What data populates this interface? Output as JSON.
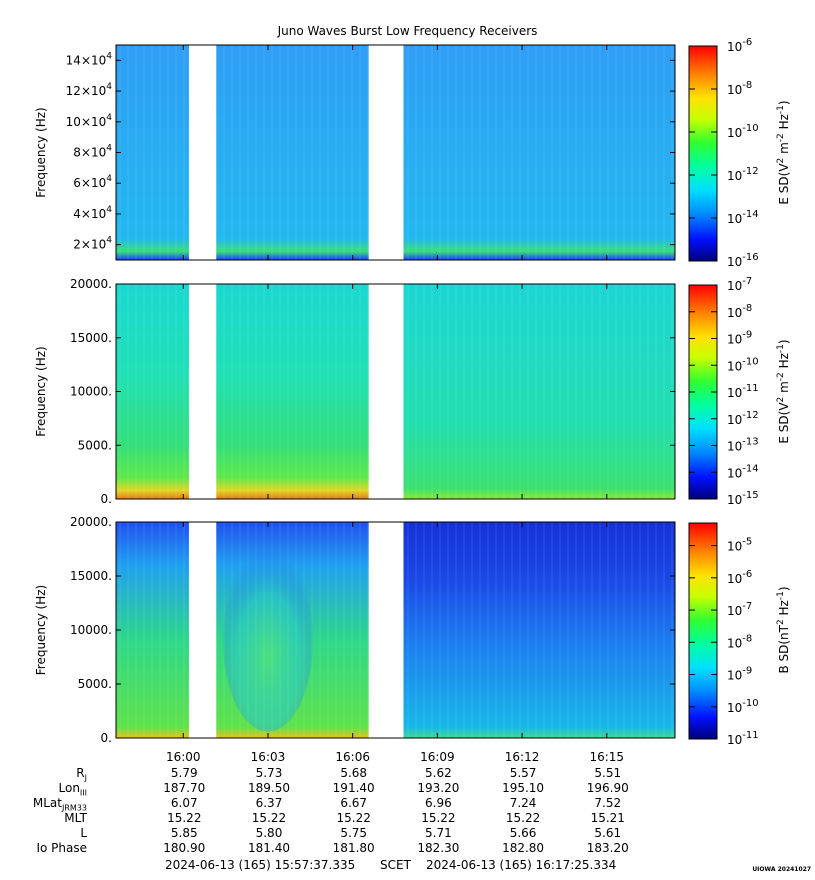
{
  "title": "Juno Waves Burst Low Frequency Receivers",
  "colors": {
    "gap": "#ffffff",
    "frame": "#000000"
  },
  "chart_data": [
    {
      "type": "heatmap",
      "panel": "top",
      "ylabel": "Frequency (Hz)",
      "ylim": [
        10000,
        150000
      ],
      "y_ticks": [
        20000,
        40000,
        60000,
        80000,
        100000,
        120000,
        140000
      ],
      "y_tick_labels": [
        {
          "mant": "2",
          "exp": "4"
        },
        {
          "mant": "4",
          "exp": "4"
        },
        {
          "mant": "6",
          "exp": "4"
        },
        {
          "mant": "8",
          "exp": "4"
        },
        {
          "mant": "10",
          "exp": "4"
        },
        {
          "mant": "12",
          "exp": "4"
        },
        {
          "mant": "14",
          "exp": "4"
        }
      ],
      "colorbar_label": "E SD(V^2 m^-2 Hz^-1)",
      "colorbar_range_exp": [
        -16,
        -6
      ],
      "colorbar_tick_exps": [
        "-6",
        "-8",
        "-10",
        "-12",
        "-14",
        "-16"
      ],
      "data_gaps": [
        [
          "16:00:12",
          "16:01:10"
        ],
        [
          "16:06:34",
          "16:07:48"
        ]
      ]
    },
    {
      "type": "heatmap",
      "panel": "middle",
      "ylabel": "Frequency (Hz)",
      "ylim": [
        0,
        20000
      ],
      "y_ticks": [
        0,
        5000,
        10000,
        15000,
        20000
      ],
      "y_tick_labels": [
        "0.",
        "5000.",
        "10000.",
        "15000.",
        "20000."
      ],
      "colorbar_label": "E SD(V^2 m^-2 Hz^-1)",
      "colorbar_range_exp": [
        -15,
        -7
      ],
      "colorbar_tick_exps": [
        "-7",
        "-8",
        "-9",
        "-10",
        "-11",
        "-12",
        "-13",
        "-14",
        "-15"
      ],
      "data_gaps": [
        [
          "16:00:12",
          "16:01:10"
        ],
        [
          "16:06:34",
          "16:07:48"
        ]
      ]
    },
    {
      "type": "heatmap",
      "panel": "bottom",
      "ylabel": "Frequency (Hz)",
      "ylim": [
        0,
        20000
      ],
      "y_ticks": [
        0,
        5000,
        10000,
        15000,
        20000
      ],
      "y_tick_labels": [
        "0.",
        "5000.",
        "10000.",
        "15000.",
        "20000."
      ],
      "colorbar_label": "B SD(nT^2 Hz^-1)",
      "colorbar_range_exp": [
        -11,
        -4.3
      ],
      "colorbar_tick_exps": [
        "-5",
        "-6",
        "-7",
        "-8",
        "-9",
        "-10",
        "-11"
      ],
      "data_gaps": [
        [
          "16:00:12",
          "16:01:10"
        ],
        [
          "16:06:34",
          "16:07:48"
        ]
      ]
    }
  ],
  "x_axis": {
    "start": "15:57:37",
    "end": "16:17:25",
    "tick_labels": [
      "16:00",
      "16:03",
      "16:06",
      "16:09",
      "16:12",
      "16:15"
    ]
  },
  "ephemeris": {
    "labels": [
      {
        "main": "R",
        "sub": "J"
      },
      {
        "main": "Lon",
        "sub": "III"
      },
      {
        "main": "MLat",
        "sub": "JRM33"
      },
      {
        "main": "MLT",
        "sub": ""
      },
      {
        "main": "L",
        "sub": ""
      },
      {
        "main": "Io Phase",
        "sub": ""
      }
    ],
    "rows": [
      [
        "5.79",
        "5.73",
        "5.68",
        "5.62",
        "5.57",
        "5.51"
      ],
      [
        "187.70",
        "189.50",
        "191.40",
        "193.20",
        "195.10",
        "196.90"
      ],
      [
        "6.07",
        "6.37",
        "6.67",
        "6.96",
        "7.24",
        "7.52"
      ],
      [
        "15.22",
        "15.22",
        "15.22",
        "15.22",
        "15.22",
        "15.21"
      ],
      [
        "5.85",
        "5.80",
        "5.75",
        "5.71",
        "5.66",
        "5.61"
      ],
      [
        "180.90",
        "181.40",
        "181.80",
        "182.30",
        "182.80",
        "183.20"
      ]
    ]
  },
  "footer": {
    "start": "2024-06-13 (165) 15:57:37.335",
    "mid": "SCET",
    "end": "2024-06-13 (165) 16:17:25.334"
  },
  "stamp": "UIOWA 20241027"
}
